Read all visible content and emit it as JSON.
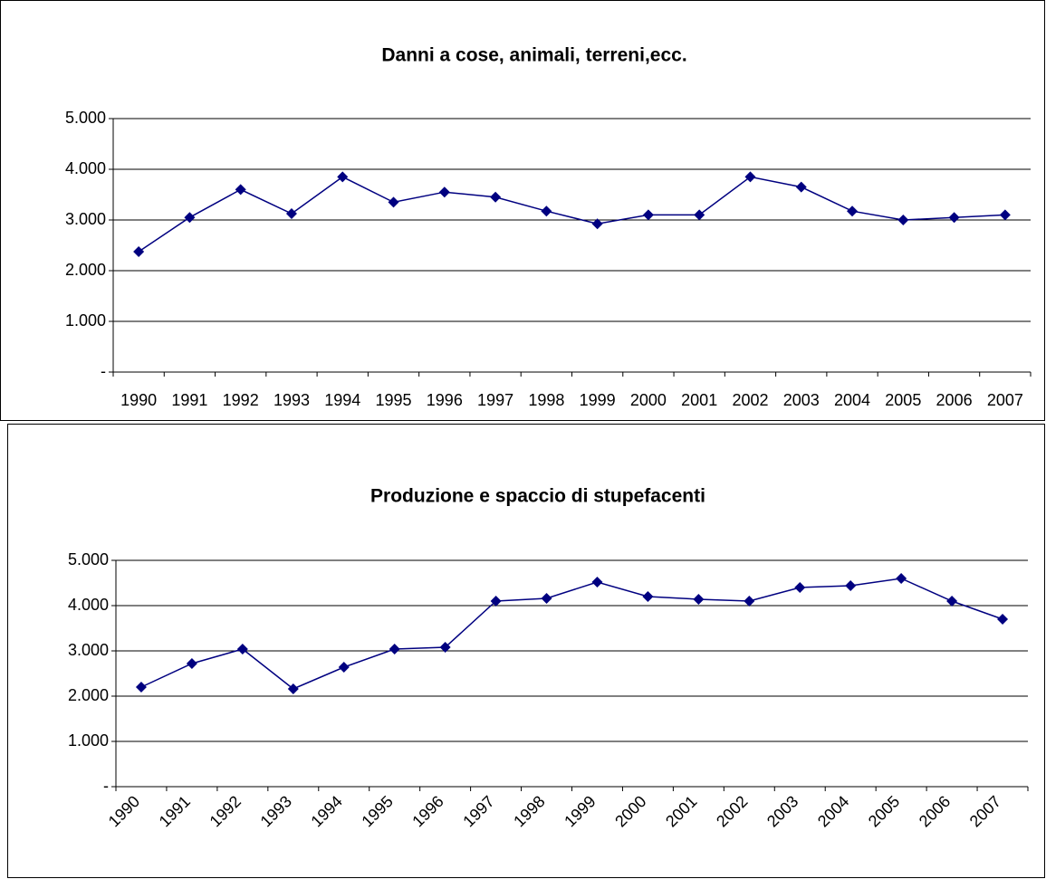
{
  "chart_data": [
    {
      "type": "line",
      "title": "Danni a cose, animali, terreni,ecc.",
      "categories": [
        "1990",
        "1991",
        "1992",
        "1993",
        "1994",
        "1995",
        "1996",
        "1997",
        "1998",
        "1999",
        "2000",
        "2001",
        "2002",
        "2003",
        "2004",
        "2005",
        "2006",
        "2007"
      ],
      "values": [
        2375,
        3050,
        3600,
        3125,
        3850,
        3350,
        3550,
        3450,
        3175,
        2925,
        3100,
        3100,
        3850,
        3650,
        3175,
        3000,
        3050,
        3100
      ],
      "color": "#000080",
      "xtick_rotation": 0,
      "ylim": [
        0,
        5000
      ],
      "yticks": [
        {
          "value": 0,
          "label": "-"
        },
        {
          "value": 1000,
          "label": "1.000"
        },
        {
          "value": 2000,
          "label": "2.000"
        },
        {
          "value": 3000,
          "label": "3.000"
        },
        {
          "value": 4000,
          "label": "4.000"
        },
        {
          "value": 5000,
          "label": "5.000"
        }
      ],
      "grid": true
    },
    {
      "type": "line",
      "title": "Produzione e spaccio di stupefacenti",
      "categories": [
        "1990",
        "1991",
        "1992",
        "1993",
        "1994",
        "1995",
        "1996",
        "1997",
        "1998",
        "1999",
        "2000",
        "2001",
        "2002",
        "2003",
        "2004",
        "2005",
        "2006",
        "2007"
      ],
      "values": [
        2200,
        2720,
        3040,
        2160,
        2640,
        3040,
        3080,
        4100,
        4160,
        4520,
        4200,
        4140,
        4100,
        4400,
        4440,
        4600,
        4100,
        3700
      ],
      "color": "#000080",
      "xtick_rotation": 45,
      "ylim": [
        0,
        5000
      ],
      "yticks": [
        {
          "value": 0,
          "label": "-"
        },
        {
          "value": 1000,
          "label": "1.000"
        },
        {
          "value": 2000,
          "label": "2.000"
        },
        {
          "value": 3000,
          "label": "3.000"
        },
        {
          "value": 4000,
          "label": "4.000"
        },
        {
          "value": 5000,
          "label": "5.000"
        }
      ],
      "grid": true
    }
  ]
}
